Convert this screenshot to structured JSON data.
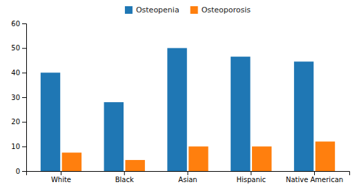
{
  "chart_data": {
    "type": "bar",
    "categories": [
      "White",
      "Black",
      "Asian",
      "Hispanic",
      "Native American"
    ],
    "series": [
      {
        "name": "Osteopenia",
        "values": [
          40,
          28,
          50,
          46.5,
          44.5
        ]
      },
      {
        "name": "Osteoporosis",
        "values": [
          7.5,
          4.5,
          10,
          10,
          12
        ]
      }
    ],
    "ylim": [
      0,
      60
    ],
    "yticks": [
      0,
      10,
      20,
      30,
      40,
      50,
      60
    ],
    "legend": "top"
  }
}
